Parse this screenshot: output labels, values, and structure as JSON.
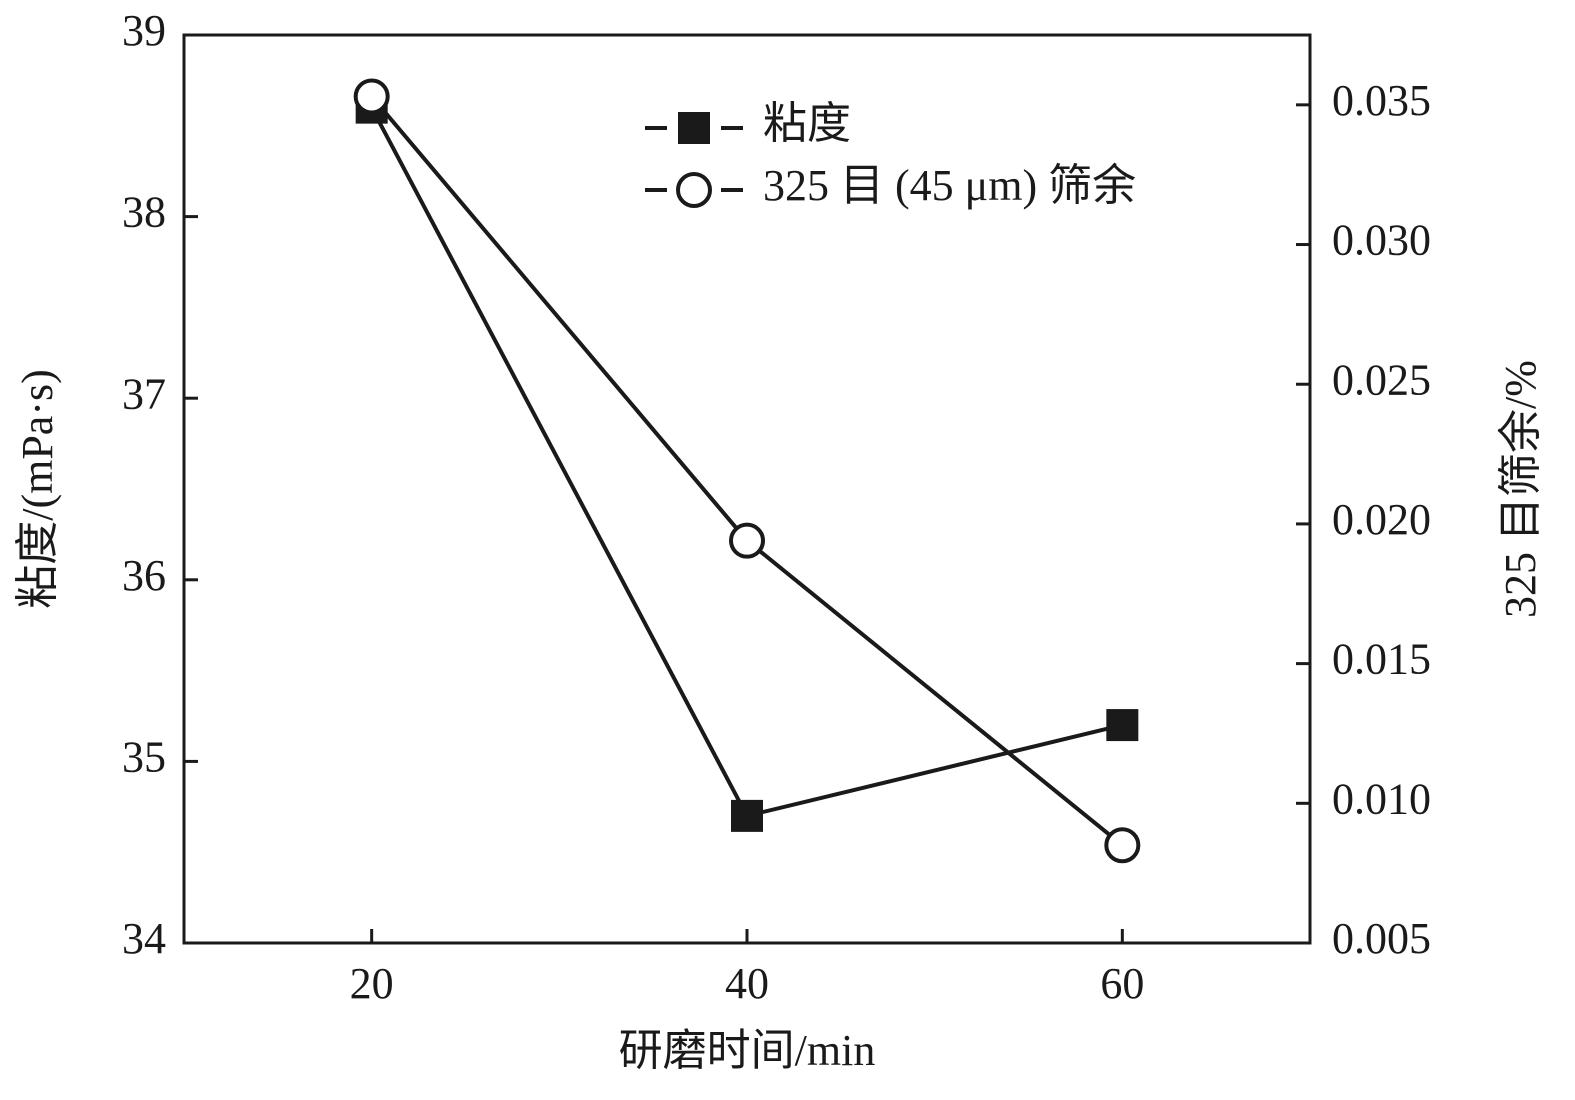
{
  "chart_data": {
    "type": "line",
    "x_label": "研磨时间/min",
    "y_label": "粘度/(mPa·s)",
    "y2_label": "325 目筛余/%",
    "x": [
      20,
      40,
      60
    ],
    "xlim": [
      10,
      70
    ],
    "xticks": [
      20,
      40,
      60
    ],
    "ylim": [
      34,
      39
    ],
    "yticks": [
      34,
      35,
      36,
      37,
      38,
      39
    ],
    "y2lim": [
      0.005,
      0.0375
    ],
    "y2ticks": [
      0.005,
      {
        "value": 0.01,
        "label": "0.010"
      },
      0.015,
      {
        "value": 0.02,
        "label": "0.020"
      },
      0.025,
      {
        "value": 0.03,
        "label": "0.030"
      },
      0.035
    ],
    "legend": "upper center",
    "series": [
      {
        "name": "粘度",
        "color": "#1a1a1a",
        "marker": "square",
        "values": [
          38.6,
          34.7,
          35.2
        ]
      },
      {
        "name": "325 目 (45 μm) 筛余",
        "color": "#1a1a1a",
        "marker": "circle",
        "axis": "y2",
        "values": [
          0.0353,
          0.0194,
          0.0085
        ]
      }
    ]
  }
}
